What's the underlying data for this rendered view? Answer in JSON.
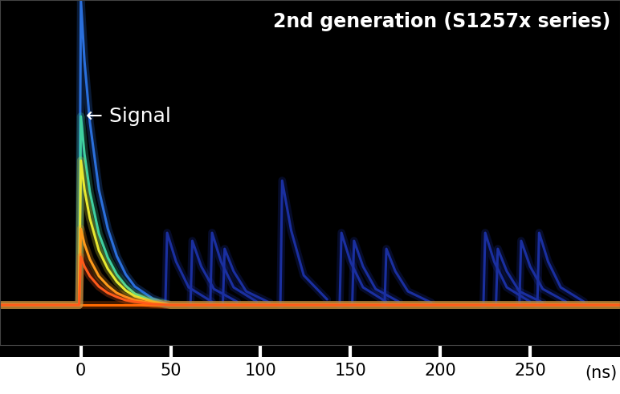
{
  "chart_data": {
    "type": "line",
    "title": "2nd generation (S1257x series)",
    "xlabel": "(ns)",
    "xlim": [
      -45,
      300
    ],
    "xticks": [
      0,
      50,
      100,
      150,
      200,
      250
    ],
    "ylim": [
      0,
      43
    ],
    "tick_labels": "x",
    "grid": false,
    "annotations": [
      {
        "text": "← Signal",
        "x": 3,
        "y": 28.5
      }
    ],
    "series": [
      {
        "color": "#ff6a00",
        "x": [
          -45,
          300
        ],
        "values": [
          5,
          5
        ]
      },
      {
        "color": "#1a2fa0",
        "x": [
          47,
          48,
          53,
          60,
          73
        ],
        "values": [
          5,
          14,
          10.4,
          7.2,
          5.4
        ]
      },
      {
        "color": "#1a2fa0",
        "x": [
          61,
          62,
          67,
          74,
          87
        ],
        "values": [
          5,
          13,
          9.8,
          7,
          5.4
        ]
      },
      {
        "color": "#1a2fa0",
        "x": [
          72,
          73,
          78,
          85,
          98
        ],
        "values": [
          5,
          14,
          10.4,
          7.2,
          5.4
        ]
      },
      {
        "color": "#1a2fa0",
        "x": [
          79,
          80,
          85,
          92,
          105
        ],
        "values": [
          5,
          12,
          9.2,
          6.7,
          5.3
        ]
      },
      {
        "color": "#1a2fa0",
        "x": [
          111,
          112,
          117,
          124,
          137
        ],
        "values": [
          5,
          20.5,
          14.3,
          8.7,
          5.7
        ]
      },
      {
        "color": "#1a2fa0",
        "x": [
          144,
          145,
          150,
          157,
          170
        ],
        "values": [
          5,
          14,
          10.4,
          7.2,
          5.4
        ]
      },
      {
        "color": "#1a2fa0",
        "x": [
          151,
          152,
          157,
          164,
          177
        ],
        "values": [
          5,
          13,
          9.8,
          7,
          5.4
        ]
      },
      {
        "color": "#1a2fa0",
        "x": [
          169,
          170,
          175,
          182,
          195
        ],
        "values": [
          5,
          12,
          9.2,
          6.7,
          5.3
        ]
      },
      {
        "color": "#1a2fa0",
        "x": [
          224,
          225,
          230,
          237,
          250
        ],
        "values": [
          5,
          14,
          10.4,
          7.2,
          5.4
        ]
      },
      {
        "color": "#1a2fa0",
        "x": [
          231,
          232,
          237,
          244,
          257
        ],
        "values": [
          5,
          12,
          9.2,
          6.7,
          5.3
        ]
      },
      {
        "color": "#1a2fa0",
        "x": [
          244,
          245,
          250,
          257,
          270
        ],
        "values": [
          5,
          13,
          9.8,
          7,
          5.4
        ]
      },
      {
        "color": "#1a2fa0",
        "x": [
          254,
          255,
          260,
          267,
          280
        ],
        "values": [
          5,
          14,
          10.4,
          7.2,
          5.4
        ]
      },
      {
        "color": "#2a6fdc",
        "x": [
          -45,
          -1,
          0,
          2,
          5,
          10,
          15,
          20,
          25,
          30,
          40,
          50,
          300
        ],
        "values": [
          5,
          5,
          43,
          35.4,
          27.8,
          19.4,
          14.5,
          11.1,
          8.8,
          7.3,
          5.8,
          5,
          5
        ]
      },
      {
        "color": "#3fd0a0",
        "x": [
          -45,
          -1,
          0,
          2,
          5,
          10,
          15,
          20,
          25,
          30,
          40,
          50,
          300
        ],
        "values": [
          5,
          5,
          28.5,
          23.8,
          19.1,
          13.9,
          10.9,
          8.8,
          7.4,
          6.4,
          5.5,
          5,
          5
        ]
      },
      {
        "color": "#e8e830",
        "x": [
          -45,
          -1,
          0,
          2,
          5,
          10,
          15,
          20,
          25,
          30,
          40,
          50,
          300
        ],
        "values": [
          5,
          5,
          23,
          19.4,
          15.8,
          11.8,
          9.5,
          7.9,
          6.8,
          6.1,
          5.4,
          5,
          5
        ]
      },
      {
        "color": "#ff9a1a",
        "x": [
          -45,
          -1,
          0,
          2,
          5,
          10,
          15,
          20,
          25,
          30,
          40,
          50,
          300
        ],
        "values": [
          5,
          5,
          14.5,
          12.6,
          10.7,
          8.6,
          7.4,
          6.5,
          6,
          5.6,
          5.2,
          5,
          5
        ]
      },
      {
        "color": "#ff5a1a",
        "x": [
          -45,
          -1,
          0,
          2,
          5,
          10,
          15,
          20,
          25,
          30,
          40,
          50,
          300
        ],
        "values": [
          5,
          5,
          11,
          9.8,
          8.6,
          7.3,
          6.5,
          6,
          5.6,
          5.4,
          5.1,
          5,
          5
        ]
      }
    ]
  }
}
